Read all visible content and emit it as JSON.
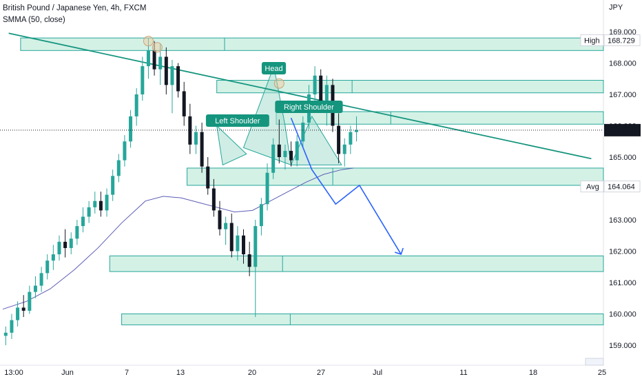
{
  "header": {
    "title": "British Pound / Japanese Yen, 4h, FXCM",
    "indicator": "SMMA (50, close)"
  },
  "chart_data": {
    "type": "candlestick",
    "currency": "JPY",
    "ylim": [
      158.55,
      169.3
    ],
    "price_ticks": [
      "169.000",
      "168.000",
      "167.000",
      "166.000",
      "165.000",
      "164.000",
      "163.000",
      "162.000",
      "161.000",
      "160.000",
      "159.000"
    ],
    "time_ticks": [
      "13:00",
      "Jun",
      "7",
      "13",
      "20",
      "27",
      "Jul",
      "11",
      "18",
      "25"
    ],
    "last_price": "165.860",
    "high_label": "High",
    "high_value": "168.729",
    "avg_label": "Avg",
    "avg_value": "164.064",
    "colors": {
      "up": "#26a69a",
      "down": "#131722",
      "smma": "#5b5bb5",
      "zone_fill": "#cdeee2",
      "zone_stroke": "#26a69a",
      "arrow": "#2962ff",
      "pattern": "#26a69a"
    },
    "pattern_labels": {
      "left": "Left Shoulder",
      "head": "Head",
      "right": "Right Shoulder"
    },
    "zones": [
      {
        "from_bar": 3,
        "to_bar": "end",
        "top": 168.8,
        "bottom": 168.4
      },
      {
        "from_bar": 36,
        "to_bar": "end",
        "top": 167.45,
        "bottom": 167.05
      },
      {
        "from_bar": 46,
        "to_bar": "end",
        "top": 166.45,
        "bottom": 166.05
      },
      {
        "from_bar": 31,
        "to_bar": "end",
        "top": 164.65,
        "bottom": 164.1
      },
      {
        "from_bar": 18,
        "to_bar": "end",
        "top": 161.85,
        "bottom": 161.35
      },
      {
        "from_bar": 20,
        "to_bar": "end",
        "top": 160.0,
        "bottom": 159.65
      }
    ],
    "trendline": {
      "from": {
        "bar": 1,
        "price": 168.95
      },
      "to": {
        "bar": 99,
        "price": 164.95
      }
    },
    "projection": [
      {
        "bar": 48.5,
        "price": 166.25
      },
      {
        "bar": 52,
        "price": 164.6
      },
      {
        "bar": 56,
        "price": 163.5
      },
      {
        "bar": 60,
        "price": 164.1
      },
      {
        "bar": 67,
        "price": 161.9
      }
    ],
    "candles": [
      [
        159.3,
        159.6,
        159.0,
        159.4
      ],
      [
        159.4,
        160.0,
        159.2,
        159.8
      ],
      [
        159.8,
        160.4,
        159.6,
        160.2
      ],
      [
        160.2,
        160.6,
        159.9,
        160.1
      ],
      [
        160.1,
        160.9,
        160.0,
        160.7
      ],
      [
        160.7,
        161.2,
        160.5,
        160.9
      ],
      [
        160.9,
        161.5,
        160.7,
        161.3
      ],
      [
        161.3,
        161.9,
        161.1,
        161.7
      ],
      [
        161.7,
        162.2,
        161.4,
        161.9
      ],
      [
        161.9,
        162.5,
        161.7,
        162.3
      ],
      [
        162.3,
        162.7,
        161.8,
        162.1
      ],
      [
        162.1,
        162.6,
        161.9,
        162.4
      ],
      [
        162.4,
        163.0,
        162.2,
        162.8
      ],
      [
        162.8,
        163.4,
        162.6,
        163.1
      ],
      [
        163.1,
        163.6,
        162.9,
        163.4
      ],
      [
        163.4,
        163.9,
        163.2,
        163.6
      ],
      [
        163.6,
        163.9,
        163.1,
        163.3
      ],
      [
        163.3,
        164.0,
        163.1,
        163.8
      ],
      [
        163.8,
        164.6,
        163.6,
        164.4
      ],
      [
        164.4,
        165.1,
        164.2,
        164.9
      ],
      [
        164.9,
        165.7,
        164.7,
        165.5
      ],
      [
        165.5,
        166.5,
        165.3,
        166.3
      ],
      [
        166.3,
        167.2,
        166.0,
        167.0
      ],
      [
        167.0,
        168.2,
        166.8,
        167.9
      ],
      [
        167.9,
        168.8,
        167.5,
        168.4
      ],
      [
        168.4,
        168.7,
        167.6,
        167.8
      ],
      [
        167.8,
        168.6,
        167.3,
        168.2
      ],
      [
        168.2,
        168.5,
        167.0,
        167.3
      ],
      [
        167.3,
        168.1,
        166.4,
        167.9
      ],
      [
        167.9,
        168.0,
        166.9,
        167.1
      ],
      [
        167.1,
        167.4,
        166.0,
        166.3
      ],
      [
        166.3,
        166.7,
        165.1,
        165.4
      ],
      [
        165.4,
        166.0,
        165.1,
        165.8
      ],
      [
        165.8,
        166.1,
        164.5,
        164.7
      ],
      [
        164.7,
        165.0,
        163.8,
        164.0
      ],
      [
        164.0,
        164.3,
        163.1,
        163.3
      ],
      [
        163.3,
        163.6,
        162.5,
        162.7
      ],
      [
        162.7,
        163.1,
        162.2,
        162.9
      ],
      [
        162.9,
        163.2,
        161.8,
        162.0
      ],
      [
        162.0,
        162.8,
        161.7,
        162.5
      ],
      [
        162.5,
        162.7,
        161.6,
        161.9
      ],
      [
        161.9,
        162.3,
        161.2,
        161.5
      ],
      [
        161.5,
        163.0,
        159.9,
        162.8
      ],
      [
        162.8,
        163.7,
        162.5,
        163.5
      ],
      [
        163.5,
        164.8,
        163.3,
        164.5
      ],
      [
        164.5,
        165.6,
        164.3,
        165.4
      ],
      [
        165.4,
        166.2,
        164.8,
        165.0
      ],
      [
        165.0,
        165.4,
        164.6,
        165.2
      ],
      [
        165.2,
        165.5,
        164.7,
        164.9
      ],
      [
        164.9,
        165.7,
        164.7,
        165.5
      ],
      [
        165.5,
        166.3,
        165.3,
        166.1
      ],
      [
        166.1,
        167.3,
        165.9,
        167.0
      ],
      [
        167.0,
        167.9,
        166.7,
        167.6
      ],
      [
        167.6,
        167.8,
        166.5,
        166.8
      ],
      [
        166.8,
        167.6,
        166.0,
        167.3
      ],
      [
        167.3,
        167.5,
        165.8,
        166.0
      ],
      [
        166.0,
        166.4,
        164.8,
        165.1
      ],
      [
        165.1,
        165.6,
        164.7,
        165.4
      ],
      [
        165.4,
        166.0,
        165.1,
        165.8
      ],
      [
        165.8,
        166.3,
        165.5,
        165.86
      ]
    ],
    "smma": [
      [
        0,
        160.15
      ],
      [
        4,
        160.4
      ],
      [
        8,
        160.8
      ],
      [
        12,
        161.4
      ],
      [
        16,
        162.1
      ],
      [
        20,
        162.9
      ],
      [
        24,
        163.6
      ],
      [
        27,
        163.75
      ],
      [
        30,
        163.7
      ],
      [
        33,
        163.55
      ],
      [
        36,
        163.4
      ],
      [
        39,
        163.25
      ],
      [
        42,
        163.3
      ],
      [
        45,
        163.6
      ],
      [
        48,
        163.9
      ],
      [
        51,
        164.2
      ],
      [
        54,
        164.45
      ],
      [
        57,
        164.6
      ],
      [
        59,
        164.65
      ]
    ]
  }
}
